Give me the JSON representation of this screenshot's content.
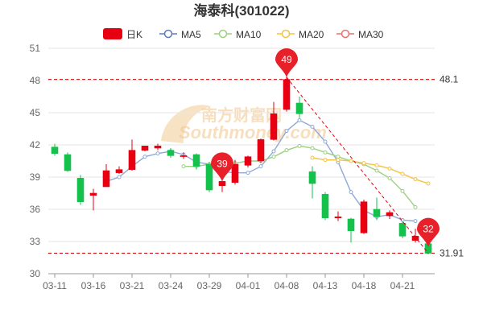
{
  "chart_data": {
    "type": "candlestick",
    "title": "海泰科(301022)",
    "watermark_main": "南方财富网",
    "watermark_sub": "Southmoney.com",
    "legend": [
      {
        "name": "日K",
        "color": "#e60012",
        "style": "rect"
      },
      {
        "name": "MA5",
        "color": "#5b7bc0",
        "style": "circle-line"
      },
      {
        "name": "MA10",
        "color": "#9ad07f",
        "style": "circle-line"
      },
      {
        "name": "MA20",
        "color": "#f5c242",
        "style": "circle-line"
      },
      {
        "name": "MA30",
        "color": "#ef6f6f",
        "style": "circle-line"
      }
    ],
    "colors": {
      "up": "#e60012",
      "down": "#14c14c",
      "ma5": "#8fa8d8",
      "ma10": "#9ad07f",
      "ma20": "#f5c242"
    },
    "ylim": [
      30,
      51
    ],
    "yticks": [
      "30",
      "33",
      "36",
      "39",
      "42",
      "45",
      "48",
      "51"
    ],
    "xtick_labels": [
      {
        "i": 0,
        "label": "03-11"
      },
      {
        "i": 3,
        "label": "03-16"
      },
      {
        "i": 6,
        "label": "03-21"
      },
      {
        "i": 9,
        "label": "03-24"
      },
      {
        "i": 12,
        "label": "03-29"
      },
      {
        "i": 15,
        "label": "04-01"
      },
      {
        "i": 18,
        "label": "04-08"
      },
      {
        "i": 21,
        "label": "04-13"
      },
      {
        "i": 24,
        "label": "04-18"
      },
      {
        "i": 27,
        "label": "04-21"
      }
    ],
    "candles": [
      {
        "o": 41.8,
        "c": 41.2,
        "h": 42.1,
        "l": 41.0
      },
      {
        "o": 41.1,
        "c": 39.6,
        "h": 41.3,
        "l": 39.5
      },
      {
        "o": 38.9,
        "c": 36.7,
        "h": 39.2,
        "l": 36.4
      },
      {
        "o": 37.3,
        "c": 37.5,
        "h": 37.9,
        "l": 35.9
      },
      {
        "o": 38.1,
        "c": 39.6,
        "h": 40.2,
        "l": 38.1
      },
      {
        "o": 39.4,
        "c": 39.7,
        "h": 40.0,
        "l": 39.3
      },
      {
        "o": 39.7,
        "c": 41.5,
        "h": 42.5,
        "l": 39.6
      },
      {
        "o": 41.5,
        "c": 41.9,
        "h": 41.9,
        "l": 41.4
      },
      {
        "o": 41.7,
        "c": 41.9,
        "h": 42.1,
        "l": 41.5
      },
      {
        "o": 41.5,
        "c": 41.0,
        "h": 41.7,
        "l": 40.8
      },
      {
        "o": 41.0,
        "c": 41.0,
        "h": 41.3,
        "l": 40.7
      },
      {
        "o": 41.1,
        "c": 40.0,
        "h": 41.2,
        "l": 39.7
      },
      {
        "o": 40.2,
        "c": 37.8,
        "h": 40.4,
        "l": 37.6
      },
      {
        "o": 38.2,
        "c": 38.6,
        "h": 39.5,
        "l": 37.6
      },
      {
        "o": 38.5,
        "c": 40.2,
        "h": 40.6,
        "l": 38.3
      },
      {
        "o": 40.1,
        "c": 40.9,
        "h": 41.0,
        "l": 39.9
      },
      {
        "o": 40.5,
        "c": 42.5,
        "h": 42.6,
        "l": 40.3
      },
      {
        "o": 42.5,
        "c": 44.9,
        "h": 46.0,
        "l": 42.4
      },
      {
        "o": 45.3,
        "c": 48.1,
        "h": 48.5,
        "l": 45.1
      },
      {
        "o": 45.9,
        "c": 44.9,
        "h": 46.5,
        "l": 44.5
      },
      {
        "o": 39.5,
        "c": 38.4,
        "h": 40.0,
        "l": 37.0
      },
      {
        "o": 37.4,
        "c": 35.2,
        "h": 37.6,
        "l": 35.0
      },
      {
        "o": 35.2,
        "c": 35.3,
        "h": 35.8,
        "l": 34.9
      },
      {
        "o": 35.1,
        "c": 34.0,
        "h": 35.2,
        "l": 32.9
      },
      {
        "o": 33.8,
        "c": 36.7,
        "h": 36.9,
        "l": 33.7
      },
      {
        "o": 36.0,
        "c": 35.3,
        "h": 37.1,
        "l": 35.0
      },
      {
        "o": 35.4,
        "c": 35.7,
        "h": 35.9,
        "l": 35.1
      },
      {
        "o": 34.7,
        "c": 33.5,
        "h": 34.9,
        "l": 33.3
      },
      {
        "o": 33.1,
        "c": 33.5,
        "h": 34.2,
        "l": 32.9
      },
      {
        "o": 32.8,
        "c": 31.91,
        "h": 33.0,
        "l": 31.8
      }
    ],
    "ma5": [
      null,
      null,
      null,
      null,
      38.6,
      39.0,
      40.0,
      40.9,
      41.2,
      41.4,
      41.1,
      40.4,
      40.2,
      39.5,
      39.4,
      39.4,
      40.0,
      41.4,
      43.3,
      44.3,
      43.7,
      42.3,
      40.4,
      37.6,
      35.9,
      35.3,
      35.5,
      35.0,
      34.9,
      null
    ],
    "ma10": [
      null,
      null,
      null,
      null,
      null,
      null,
      null,
      null,
      null,
      null,
      40.0,
      40.0,
      40.2,
      40.3,
      40.3,
      40.5,
      40.5,
      40.9,
      41.5,
      41.9,
      41.7,
      41.3,
      40.9,
      40.5,
      40.2,
      39.6,
      38.9,
      37.7,
      36.2,
      null
    ],
    "ma20": [
      null,
      null,
      null,
      null,
      null,
      null,
      null,
      null,
      null,
      null,
      null,
      null,
      null,
      null,
      null,
      null,
      null,
      null,
      null,
      null,
      40.8,
      40.6,
      40.6,
      40.5,
      40.3,
      40.1,
      39.8,
      39.3,
      38.8,
      38.4
    ],
    "ref_lines": [
      {
        "value": 48.1,
        "label": "48.1",
        "color": "#cc0000"
      },
      {
        "value": 31.91,
        "label": "31.91",
        "color": "#cc0000"
      }
    ],
    "markers": [
      {
        "i": 13,
        "value": 38.6,
        "label": "39"
      },
      {
        "i": 18,
        "value": 48.3,
        "label": "49"
      },
      {
        "i": 29,
        "value": 32.5,
        "label": "32"
      }
    ],
    "trend_line": {
      "from_i": 18,
      "from_v": 48.3,
      "to_i": 29,
      "to_v": 31.91
    }
  }
}
